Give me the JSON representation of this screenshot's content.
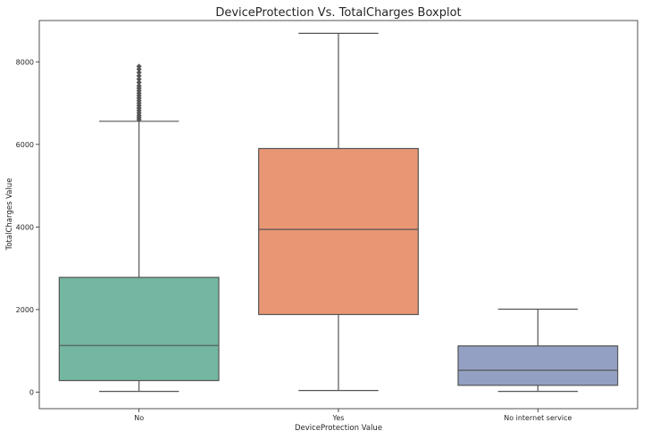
{
  "chart_data": {
    "type": "boxplot",
    "title": "DeviceProtection Vs. TotalCharges Boxplot",
    "xlabel": "DeviceProtection Value",
    "ylabel": "TotalCharges Value",
    "ylim": [
      -400,
      9000
    ],
    "yticks": [
      0,
      2000,
      4000,
      6000,
      8000
    ],
    "grid": false,
    "categories": [
      "No",
      "Yes",
      "No internet service"
    ],
    "boxes": [
      {
        "category": "No",
        "color": "#73b6a1",
        "whisker_low": 19,
        "q1": 280,
        "median": 1130,
        "q3": 2780,
        "whisker_high": 6560,
        "outliers": [
          6600,
          6650,
          6700,
          6760,
          6820,
          6880,
          6940,
          7000,
          7060,
          7120,
          7180,
          7240,
          7300,
          7360,
          7420,
          7500,
          7580,
          7660,
          7740,
          7820,
          7890
        ]
      },
      {
        "category": "Yes",
        "color": "#e99675",
        "whisker_low": 40,
        "q1": 1880,
        "median": 3940,
        "q3": 5900,
        "whisker_high": 8690,
        "outliers": []
      },
      {
        "category": "No internet service",
        "color": "#93a0c4",
        "whisker_low": 19,
        "q1": 165,
        "median": 530,
        "q3": 1120,
        "whisker_high": 2010,
        "outliers": []
      }
    ]
  }
}
